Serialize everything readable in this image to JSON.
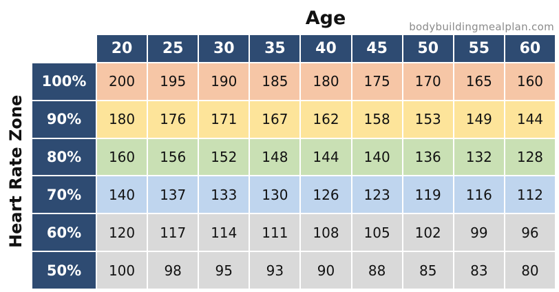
{
  "source_text": "bodybuildingmealplan.com",
  "chart_data": {
    "type": "table",
    "column_title": "Age",
    "row_title": "Heart Rate Zone",
    "columns": [
      "20",
      "25",
      "30",
      "35",
      "40",
      "45",
      "50",
      "55",
      "60"
    ],
    "rows": [
      {
        "label": "100%",
        "color": "#f6c6a6",
        "values": [
          200,
          195,
          190,
          185,
          180,
          175,
          170,
          165,
          160
        ]
      },
      {
        "label": "90%",
        "color": "#fde49a",
        "values": [
          180,
          176,
          171,
          167,
          162,
          158,
          153,
          149,
          144
        ]
      },
      {
        "label": "80%",
        "color": "#c9e0b4",
        "values": [
          160,
          156,
          152,
          148,
          144,
          140,
          136,
          132,
          128
        ]
      },
      {
        "label": "70%",
        "color": "#bfd5ee",
        "values": [
          140,
          137,
          133,
          130,
          126,
          123,
          119,
          116,
          112
        ]
      },
      {
        "label": "60%",
        "color": "#d9d9d9",
        "values": [
          120,
          117,
          114,
          111,
          108,
          105,
          102,
          99,
          96
        ]
      },
      {
        "label": "50%",
        "color": "#d9d9d9",
        "values": [
          100,
          98,
          95,
          93,
          90,
          88,
          85,
          83,
          80
        ]
      }
    ],
    "header_color": "#2e4b72"
  }
}
